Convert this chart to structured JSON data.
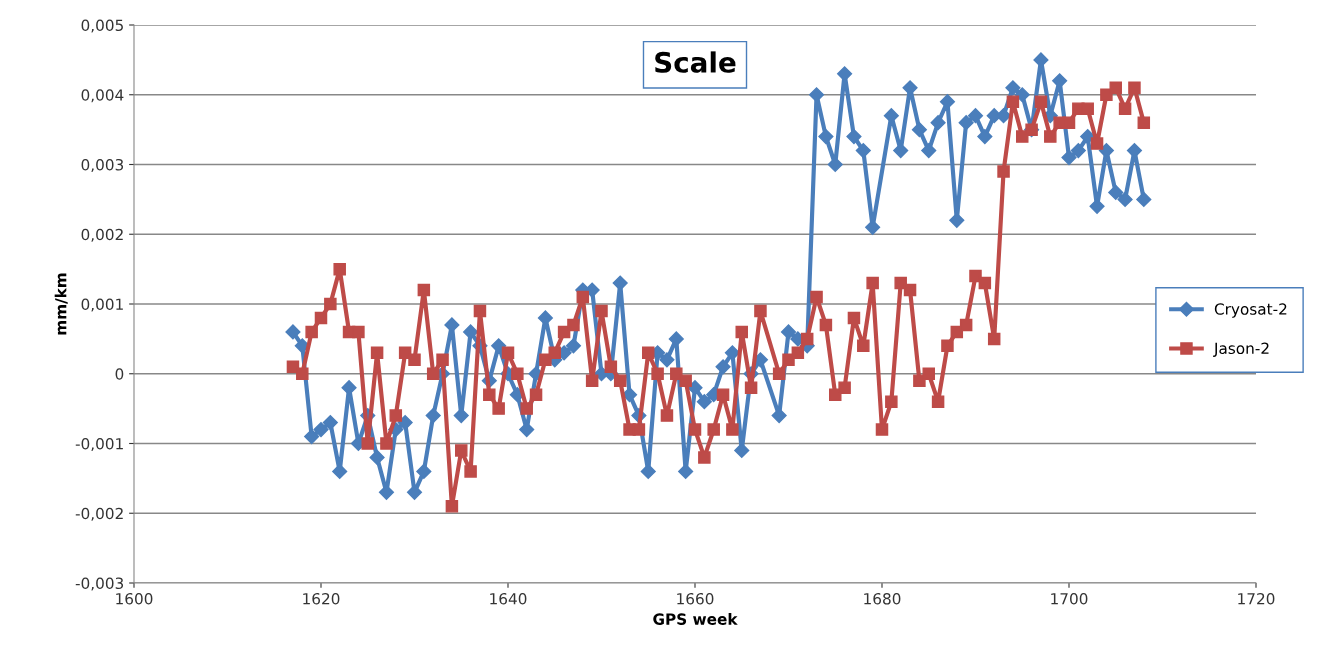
{
  "chart_data": {
    "type": "line",
    "title": "Scale",
    "xlabel": "GPS week",
    "ylabel": "mm/km",
    "xlim": [
      1600,
      1720
    ],
    "xticks": [
      1600,
      1620,
      1640,
      1660,
      1680,
      1700,
      1720
    ],
    "ylim": [
      -0.003,
      0.005
    ],
    "yticks": [
      {
        "value": -0.003,
        "label": "-0,003"
      },
      {
        "value": -0.002,
        "label": "-0,002"
      },
      {
        "value": -0.001,
        "label": "-0,001"
      },
      {
        "value": 0,
        "label": "0"
      },
      {
        "value": 0.001,
        "label": "0,001"
      },
      {
        "value": 0.002,
        "label": "0,002"
      },
      {
        "value": 0.003,
        "label": "0,003"
      },
      {
        "value": 0.004,
        "label": "0,004"
      },
      {
        "value": 0.005,
        "label": "0,005"
      }
    ],
    "grid": "y",
    "legend": "right",
    "series": [
      {
        "name": "Cryosat-2",
        "color": "#4a7ebb",
        "marker": "diamond",
        "x": [
          1617,
          1618,
          1619,
          1620,
          1621,
          1622,
          1623,
          1624,
          1625,
          1626,
          1627,
          1628,
          1629,
          1630,
          1631,
          1632,
          1633,
          1634,
          1635,
          1636,
          1637,
          1638,
          1639,
          1640,
          1641,
          1642,
          1643,
          1644,
          1645,
          1646,
          1647,
          1648,
          1649,
          1650,
          1651,
          1652,
          1653,
          1654,
          1655,
          1656,
          1657,
          1658,
          1659,
          1660,
          1661,
          1662,
          1663,
          1664,
          1665,
          1666,
          1667,
          1669,
          1670,
          1671,
          1672,
          1673,
          1674,
          1675,
          1676,
          1677,
          1678,
          1679,
          1681,
          1682,
          1683,
          1684,
          1685,
          1686,
          1687,
          1688,
          1689,
          1690,
          1691,
          1692,
          1693,
          1694,
          1695,
          1696,
          1697,
          1698,
          1699,
          1700,
          1701,
          1702,
          1703,
          1704,
          1705,
          1706,
          1707,
          1708
        ],
        "values": [
          0.0006,
          0.0004,
          -0.0009,
          -0.0008,
          -0.0007,
          -0.0014,
          -0.0002,
          -0.001,
          -0.0006,
          -0.0012,
          -0.0017,
          -0.0008,
          -0.0007,
          -0.0017,
          -0.0014,
          -0.0006,
          0.0,
          0.0007,
          -0.0006,
          0.0006,
          0.0004,
          -0.0001,
          0.0004,
          0.0,
          -0.0003,
          -0.0008,
          0.0,
          0.0008,
          0.0002,
          0.0003,
          0.0004,
          0.0012,
          0.0012,
          0.0,
          0.0,
          0.0013,
          -0.0003,
          -0.0006,
          -0.0014,
          0.0003,
          0.0002,
          0.0005,
          -0.0014,
          -0.0002,
          -0.0004,
          -0.0003,
          0.0001,
          0.0003,
          -0.0011,
          0.0,
          0.0002,
          -0.0006,
          0.0006,
          0.0005,
          0.0004,
          0.004,
          0.0034,
          0.003,
          0.0043,
          0.0034,
          0.0032,
          0.0021,
          0.0037,
          0.0032,
          0.0041,
          0.0035,
          0.0032,
          0.0036,
          0.0039,
          0.0022,
          0.0036,
          0.0037,
          0.0034,
          0.0037,
          0.0037,
          0.0041,
          0.004,
          0.0035,
          0.0045,
          0.0037,
          0.0042,
          0.0031,
          0.0032,
          0.0034,
          0.0024,
          0.0032,
          0.0026,
          0.0025,
          0.0032,
          0.0025
        ]
      },
      {
        "name": "Jason-2",
        "color": "#be4b48",
        "marker": "square",
        "x": [
          1617,
          1618,
          1619,
          1620,
          1621,
          1622,
          1623,
          1624,
          1625,
          1626,
          1627,
          1628,
          1629,
          1630,
          1631,
          1632,
          1633,
          1634,
          1635,
          1636,
          1637,
          1638,
          1639,
          1640,
          1641,
          1642,
          1643,
          1644,
          1645,
          1646,
          1647,
          1648,
          1649,
          1650,
          1651,
          1652,
          1653,
          1654,
          1655,
          1656,
          1657,
          1658,
          1659,
          1660,
          1661,
          1662,
          1663,
          1664,
          1665,
          1666,
          1667,
          1669,
          1670,
          1671,
          1672,
          1673,
          1674,
          1675,
          1676,
          1677,
          1678,
          1679,
          1680,
          1681,
          1682,
          1683,
          1684,
          1685,
          1686,
          1687,
          1688,
          1689,
          1690,
          1691,
          1692,
          1693,
          1694,
          1695,
          1696,
          1697,
          1698,
          1699,
          1700,
          1701,
          1702,
          1703,
          1704,
          1705,
          1706,
          1707,
          1708
        ],
        "values": [
          0.0001,
          0.0,
          0.0006,
          0.0008,
          0.001,
          0.0015,
          0.0006,
          0.0006,
          -0.001,
          0.0003,
          -0.001,
          -0.0006,
          0.0003,
          0.0002,
          0.0012,
          0.0,
          0.0002,
          -0.0019,
          -0.0011,
          -0.0014,
          0.0009,
          -0.0003,
          -0.0005,
          0.0003,
          0.0,
          -0.0005,
          -0.0003,
          0.0002,
          0.0003,
          0.0006,
          0.0007,
          0.0011,
          -0.0001,
          0.0009,
          0.0001,
          -0.0001,
          -0.0008,
          -0.0008,
          0.0003,
          0.0,
          -0.0006,
          0.0,
          -0.0001,
          -0.0008,
          -0.0012,
          -0.0008,
          -0.0003,
          -0.0008,
          0.0006,
          -0.0002,
          0.0009,
          0.0,
          0.0002,
          0.0003,
          0.0005,
          0.0011,
          0.0007,
          -0.0003,
          -0.0002,
          0.0008,
          0.0004,
          0.0013,
          -0.0008,
          -0.0004,
          0.0013,
          0.0012,
          -0.0001,
          0.0,
          -0.0004,
          0.0004,
          0.0006,
          0.0007,
          0.0014,
          0.0013,
          0.0005,
          0.0029,
          0.0039,
          0.0034,
          0.0035,
          0.0039,
          0.0034,
          0.0036,
          0.0036,
          0.0038,
          0.0038,
          0.0033,
          0.004,
          0.0041,
          0.0038,
          0.0041,
          0.0036
        ]
      }
    ]
  }
}
